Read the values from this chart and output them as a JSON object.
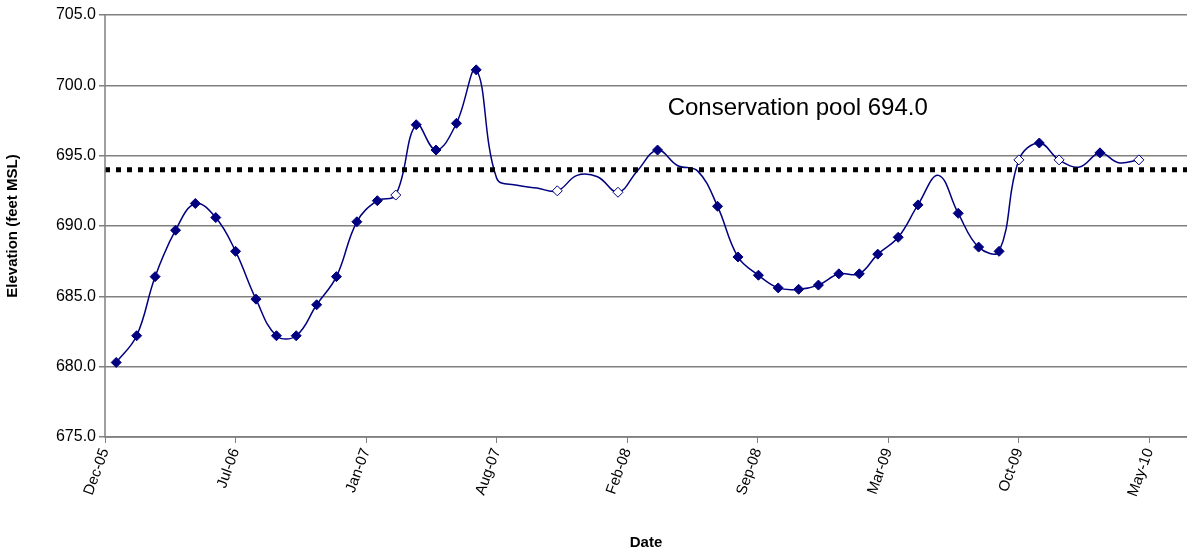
{
  "chart_data": {
    "type": "line",
    "xlabel": "Date",
    "ylabel": "Elevation (feet MSL)",
    "x": [
      "2006-01-15",
      "2006-02-15",
      "2006-03-15",
      "2006-04-15",
      "2006-05-15",
      "2006-06-15",
      "2006-07-15",
      "2006-08-15",
      "2006-09-15",
      "2006-10-15",
      "2006-11-15",
      "2006-12-15",
      "2007-01-15",
      "2007-02-15",
      "2007-03-15",
      "2007-04-15",
      "2007-05-15",
      "2007-06-15",
      "2007-07-15",
      "2007-08-15",
      "2007-09-15",
      "2007-10-15",
      "2007-11-15",
      "2007-12-15",
      "2008-01-15",
      "2008-02-15",
      "2008-03-15",
      "2008-04-15",
      "2008-05-15",
      "2008-06-15",
      "2008-07-15",
      "2008-08-15",
      "2008-09-15",
      "2008-10-15",
      "2008-11-15",
      "2008-12-15",
      "2009-01-15",
      "2009-02-15",
      "2009-03-15",
      "2009-04-15",
      "2009-05-15",
      "2009-06-15",
      "2009-07-15",
      "2009-08-15",
      "2009-09-15",
      "2009-10-15",
      "2009-11-15",
      "2009-12-15",
      "2010-01-15",
      "2010-02-15",
      "2010-03-15",
      "2010-04-15"
    ],
    "series": [
      {
        "color": "#000080",
        "values": [
          680.3,
          682.2,
          686.4,
          689.7,
          691.6,
          690.6,
          688.2,
          684.8,
          682.2,
          682.2,
          684.4,
          686.4,
          690.3,
          691.8,
          692.2,
          697.2,
          695.4,
          697.3,
          701.1,
          693.4,
          692.9,
          692.7,
          692.5,
          693.6,
          693.5,
          692.4,
          693.9,
          695.4,
          694.3,
          693.9,
          691.4,
          687.8,
          686.5,
          685.6,
          685.5,
          685.8,
          686.6,
          686.6,
          688.0,
          689.2,
          691.5,
          693.6,
          690.9,
          688.5,
          688.2,
          694.7,
          695.9,
          694.7,
          694.2,
          695.2,
          694.5,
          694.7
        ],
        "colors": [
          "#000080",
          "#000080",
          "#000080",
          "#000080",
          "#000080",
          "#000080",
          "#000080",
          "#000080",
          "#000080",
          "#000080",
          "#000080",
          "#000080",
          "#000080",
          "#000080",
          "#ffffff",
          "#000080",
          "#000080",
          "#000080",
          "#000080",
          null,
          null,
          null,
          "#ffffff",
          null,
          null,
          "#ffffff",
          null,
          "#000080",
          null,
          null,
          "#000080",
          "#000080",
          "#000080",
          "#000080",
          "#000080",
          "#000080",
          "#000080",
          "#000080",
          "#000080",
          "#000080",
          "#000080",
          null,
          "#000080",
          "#000080",
          "#000080",
          "#ffffff",
          "#000080",
          "#ffffff",
          null,
          "#000080",
          null,
          "#ffffff"
        ]
      }
    ],
    "xlim": [
      "2005-12-29",
      "2010-06-27"
    ],
    "xticks": [
      {
        "value": "2005-12-29",
        "label": "Dec-05"
      },
      {
        "value": "2006-07-15",
        "label": "Jul-06"
      },
      {
        "value": "2007-01-29",
        "label": "Jan-07"
      },
      {
        "value": "2007-08-15",
        "label": "Aug-07"
      },
      {
        "value": "2008-02-29",
        "label": "Feb-08"
      },
      {
        "value": "2008-09-14",
        "label": "Sep-08"
      },
      {
        "value": "2009-03-31",
        "label": "Mar-09"
      },
      {
        "value": "2009-10-15",
        "label": "Oct-09"
      },
      {
        "value": "2010-05-01",
        "label": "May-10"
      }
    ],
    "ylim": [
      675,
      705
    ],
    "yticks": [
      {
        "value": 675,
        "label": "675.0"
      },
      {
        "value": 680,
        "label": "680.0"
      },
      {
        "value": 685,
        "label": "685.0"
      },
      {
        "value": 690,
        "label": "690.0"
      },
      {
        "value": 695,
        "label": "695.0"
      },
      {
        "value": 700,
        "label": "700.0"
      },
      {
        "value": 705,
        "label": "705.0"
      }
    ],
    "ref_lines": [
      {
        "axis": "y",
        "value": 694.0,
        "label": "Conservation pool 694.0",
        "color": "#000000",
        "line_style": "dotted"
      }
    ],
    "grid": "y",
    "legend": false,
    "marker": "diamond",
    "line_style": "solid"
  }
}
